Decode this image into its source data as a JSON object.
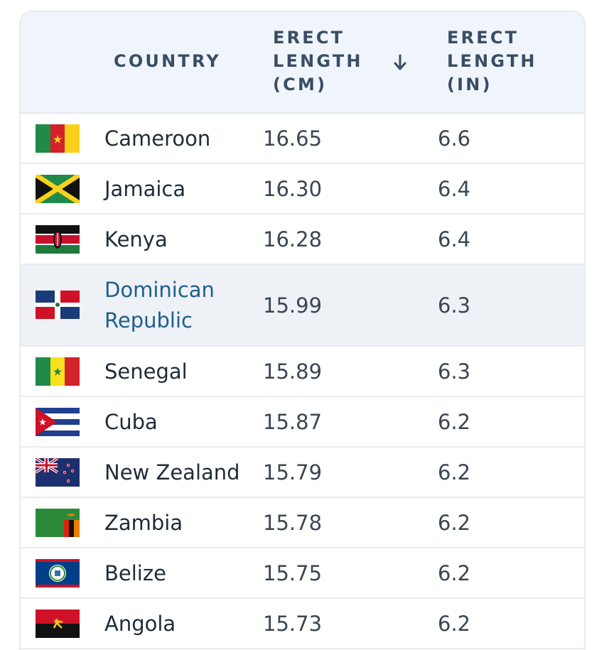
{
  "table": {
    "headers": {
      "country": "COUNTRY",
      "cm": "ERECT\nLENGTH\n(CM)",
      "in": "ERECT\nLENGTH\n(IN)",
      "sort_icon": "arrow-down-icon"
    },
    "rows": [
      {
        "flag": "cameroon-flag-icon",
        "country": "Cameroon",
        "cm": "16.65",
        "in": "6.6"
      },
      {
        "flag": "jamaica-flag-icon",
        "country": "Jamaica",
        "cm": "16.30",
        "in": "6.4"
      },
      {
        "flag": "kenya-flag-icon",
        "country": "Kenya",
        "cm": "16.28",
        "in": "6.4"
      },
      {
        "flag": "dominican-republic-flag-icon",
        "country": "Dominican\nRepublic",
        "cm": "15.99",
        "in": "6.3"
      },
      {
        "flag": "senegal-flag-icon",
        "country": "Senegal",
        "cm": "15.89",
        "in": "6.3"
      },
      {
        "flag": "cuba-flag-icon",
        "country": "Cuba",
        "cm": "15.87",
        "in": "6.2"
      },
      {
        "flag": "new-zealand-flag-icon",
        "country": "New Zealand",
        "cm": "15.79",
        "in": "6.2"
      },
      {
        "flag": "zambia-flag-icon",
        "country": "Zambia",
        "cm": "15.78",
        "in": "6.2"
      },
      {
        "flag": "belize-flag-icon",
        "country": "Belize",
        "cm": "15.75",
        "in": "6.2"
      },
      {
        "flag": "angola-flag-icon",
        "country": "Angola",
        "cm": "15.73",
        "in": "6.2"
      }
    ]
  },
  "colors": {
    "header_bg": "#eff5fb",
    "header_text": "#3a4d63",
    "link": "#1e5f8a",
    "row_highlight": "#eef1f6"
  }
}
